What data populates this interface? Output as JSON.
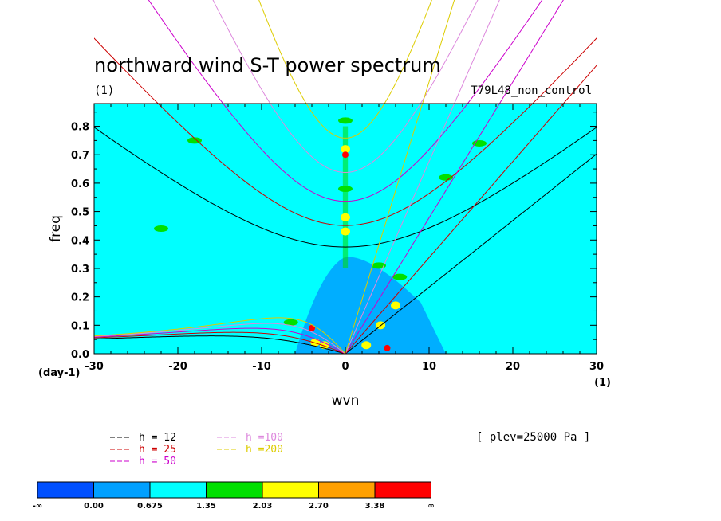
{
  "chart_data": {
    "type": "heatmap",
    "title": "northward wind S-T power spectrum",
    "units_label": "(1)",
    "case_label": "T79L48_non_control",
    "xlabel": "wvn",
    "ylabel": "freq",
    "x_unit_label": "(1)",
    "y_unit_label": "(day-1)",
    "xlim": [
      -30,
      30
    ],
    "ylim": [
      0.0,
      0.88
    ],
    "x_ticks": [
      -30,
      -20,
      -10,
      0,
      10,
      20,
      30
    ],
    "x_tick_labels": [
      "-30",
      "-20",
      "-10",
      "0",
      "10",
      "20",
      "30"
    ],
    "y_ticks": [
      0.0,
      0.1,
      0.2,
      0.3,
      0.4,
      0.5,
      0.6,
      0.7,
      0.8
    ],
    "y_tick_labels": [
      "0.0",
      "0.1",
      "0.2",
      "0.3",
      "0.4",
      "0.5",
      "0.6",
      "0.7",
      "0.8"
    ],
    "plev_label": "[ plev=25000 Pa ]",
    "background_color": "#00ffff",
    "dispersion_curves": [
      {
        "label": "h = 12",
        "h": 12,
        "color": "#000000"
      },
      {
        "label": "h = 25",
        "h": 25,
        "color": "#cc0000"
      },
      {
        "label": "h = 50",
        "h": 50,
        "color": "#cc00cc"
      },
      {
        "label": "h =100",
        "h": 100,
        "color": "#dd88dd"
      },
      {
        "label": "h =200",
        "h": 200,
        "color": "#ddcc00"
      }
    ],
    "colorbar": {
      "colors": [
        "#0050ff",
        "#00a0ff",
        "#00ffff",
        "#00e000",
        "#ffff00",
        "#ffa000",
        "#ff0000"
      ],
      "labels": [
        "-∞",
        "0.00",
        "0.675",
        "1.35",
        "2.03",
        "2.70",
        "3.38",
        "∞"
      ]
    },
    "blobs": [
      {
        "k": -4.0,
        "f": 0.09,
        "level": 6
      },
      {
        "k": -3.6,
        "f": 0.04,
        "level": 4
      },
      {
        "k": 5.0,
        "f": 0.02,
        "level": 6
      },
      {
        "k": 4.2,
        "f": 0.1,
        "level": 4
      },
      {
        "k": 6.0,
        "f": 0.17,
        "level": 4
      },
      {
        "k": 0.0,
        "f": 0.72,
        "level": 4
      },
      {
        "k": 0.0,
        "f": 0.7,
        "level": 6
      },
      {
        "k": 0.0,
        "f": 0.48,
        "level": 4
      },
      {
        "k": 0.0,
        "f": 0.43,
        "level": 4
      },
      {
        "k": -2.5,
        "f": 0.03,
        "level": 4
      },
      {
        "k": 2.5,
        "f": 0.03,
        "level": 4
      },
      {
        "k": -6.5,
        "f": 0.11,
        "level": 3
      },
      {
        "k": 6.5,
        "f": 0.27,
        "level": 3
      },
      {
        "k": 4.0,
        "f": 0.31,
        "level": 3
      },
      {
        "k": -18.0,
        "f": 0.75,
        "level": 3
      },
      {
        "k": 16.0,
        "f": 0.74,
        "level": 3
      },
      {
        "k": -22.0,
        "f": 0.44,
        "level": 3
      },
      {
        "k": 12.0,
        "f": 0.62,
        "level": 3
      },
      {
        "k": 0.0,
        "f": 0.58,
        "level": 3
      },
      {
        "k": 0.0,
        "f": 0.82,
        "level": 3
      }
    ]
  }
}
